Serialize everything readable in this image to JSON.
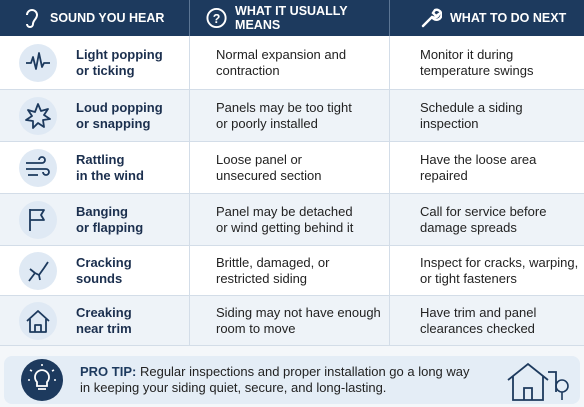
{
  "header": {
    "columns": [
      "SOUND YOU HEAR",
      "WHAT IT USUALLY MEANS",
      "WHAT TO DO NEXT"
    ]
  },
  "table": {
    "rows": [
      [
        [
          "Light popping",
          "or ticking"
        ],
        [
          "Normal expansion and",
          "contraction"
        ],
        [
          "Monitor it during",
          "temperature swings"
        ]
      ],
      [
        [
          "Loud popping",
          "or snapping"
        ],
        [
          "Panels may be too tight",
          "or poorly installed"
        ],
        [
          "Schedule a siding",
          "inspection"
        ]
      ],
      [
        [
          "Rattling",
          "in the wind"
        ],
        [
          "Loose panel or",
          "unsecured section"
        ],
        [
          "Have the loose area",
          "repaired"
        ]
      ],
      [
        [
          "Banging",
          "or flapping"
        ],
        [
          "Panel may be detached",
          "or wind getting behind it"
        ],
        [
          "Call for service before",
          "damage spreads"
        ]
      ],
      [
        [
          "Cracking",
          "sounds"
        ],
        [
          "Brittle, damaged, or",
          "restricted siding"
        ],
        [
          "Inspect for cracks, warping,",
          "or tight fasteners"
        ]
      ],
      [
        [
          "Creaking",
          "near trim"
        ],
        [
          "Siding may not have enough",
          "room to move"
        ],
        [
          "Have trim and panel",
          "clearances checked"
        ]
      ]
    ]
  },
  "pro_tip": {
    "label": "PRO TIP:",
    "lines": [
      "Regular inspections and proper installation go a long way",
      "in keeping your siding quiet, secure, and long-lasting."
    ]
  }
}
